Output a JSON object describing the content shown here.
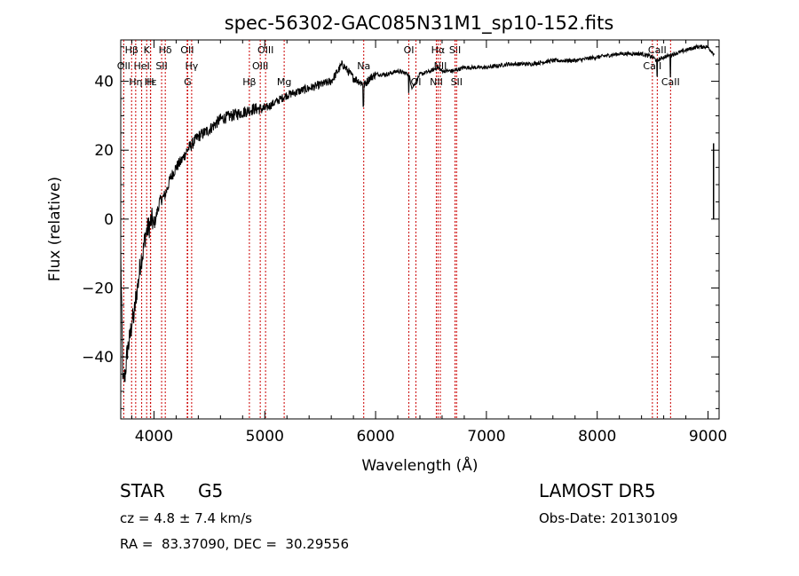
{
  "chart_data": {
    "type": "line",
    "title": "spec-56302-GAC085N31M1_sp10-152.fits",
    "xlabel": "Wavelength (Å)",
    "ylabel": "Flux (relative)",
    "xlim": [
      3700,
      9100
    ],
    "ylim": [
      -58,
      52
    ],
    "x_ticks": [
      4000,
      5000,
      6000,
      7000,
      8000,
      9000
    ],
    "y_ticks": [
      -40,
      -20,
      0,
      20,
      40
    ],
    "grid": false,
    "line_color": "#000000",
    "marker_color": "#cc0000",
    "spectrum": {
      "name": "",
      "x": [
        3700,
        3720,
        3740,
        3760,
        3780,
        3800,
        3820,
        3840,
        3860,
        3880,
        3900,
        3920,
        3940,
        3960,
        3980,
        4000,
        4050,
        4100,
        4150,
        4200,
        4250,
        4300,
        4350,
        4400,
        4450,
        4500,
        4600,
        4700,
        4800,
        4900,
        5000,
        5100,
        5200,
        5300,
        5400,
        5500,
        5600,
        5700,
        5750,
        5800,
        5850,
        5900,
        5950,
        6000,
        6100,
        6200,
        6300,
        6330,
        6400,
        6500,
        6560,
        6600,
        6700,
        6800,
        6900,
        7000,
        7200,
        7400,
        7600,
        7800,
        8000,
        8200,
        8400,
        8500,
        8540,
        8600,
        8700,
        8800,
        8900,
        9000,
        9050,
        9100
      ],
      "y": [
        -10,
        -48,
        -45,
        -38,
        -35,
        -30,
        -28,
        -22,
        -18,
        -12,
        -10,
        -5,
        -3,
        -2,
        0,
        -2,
        5,
        7,
        12,
        15,
        17,
        20,
        22,
        24,
        25,
        26,
        29,
        30,
        31,
        32,
        32,
        34,
        36,
        37,
        38,
        39,
        40,
        45,
        43,
        41,
        40,
        39,
        41,
        42,
        42,
        43,
        42,
        38,
        42,
        43,
        44,
        43,
        43,
        44,
        44,
        44,
        45,
        45,
        46,
        46,
        47,
        48,
        48,
        47,
        46,
        47,
        48,
        49,
        50,
        50,
        48,
        49
      ]
    },
    "line_markers": [
      {
        "label": "Hβ",
        "wl": 3798,
        "row": 1
      },
      {
        "label": "K",
        "wl": 3934,
        "row": 1
      },
      {
        "label": "Hδ",
        "wl": 4102,
        "row": 1
      },
      {
        "label": "OII",
        "wl": 4300,
        "row": 1
      },
      {
        "label": "OIII",
        "wl": 5007,
        "row": 1
      },
      {
        "label": "OI",
        "wl": 6300,
        "row": 1
      },
      {
        "label": "Hα",
        "wl": 6563,
        "row": 1
      },
      {
        "label": "SII",
        "wl": 6717,
        "row": 1
      },
      {
        "label": "CaII",
        "wl": 8542,
        "row": 1
      },
      {
        "label": "OII",
        "wl": 3727,
        "row": 2
      },
      {
        "label": "HeI",
        "wl": 3889,
        "row": 2
      },
      {
        "label": "SII",
        "wl": 4069,
        "row": 2
      },
      {
        "label": "Hγ",
        "wl": 4340,
        "row": 2
      },
      {
        "label": "OIII",
        "wl": 4959,
        "row": 2
      },
      {
        "label": "Na",
        "wl": 5893,
        "row": 2
      },
      {
        "label": "NII",
        "wl": 6584,
        "row": 2
      },
      {
        "label": "CaII",
        "wl": 8498,
        "row": 2
      },
      {
        "label": "Hε",
        "wl": 3970,
        "row": 3
      },
      {
        "label": "Hη",
        "wl": 3835,
        "row": 3
      },
      {
        "label": "H",
        "wl": 3968,
        "row": 3
      },
      {
        "label": "G",
        "wl": 4304,
        "row": 3
      },
      {
        "label": "Hβ",
        "wl": 4861,
        "row": 3
      },
      {
        "label": "Mg",
        "wl": 5175,
        "row": 3
      },
      {
        "label": "OI",
        "wl": 6364,
        "row": 3
      },
      {
        "label": "NII",
        "wl": 6548,
        "row": 3
      },
      {
        "label": "SII",
        "wl": 6731,
        "row": 3
      },
      {
        "label": "CaII",
        "wl": 8662,
        "row": 3
      }
    ]
  },
  "info": {
    "object_class": "STAR",
    "subclass": "G5",
    "redshift_line": "cz = 4.8 ± 7.4 km/s",
    "coords_line": "RA =  83.37090, DEC =  30.29556",
    "survey": "LAMOST DR5",
    "obs_date": "Obs-Date: 20130109"
  }
}
